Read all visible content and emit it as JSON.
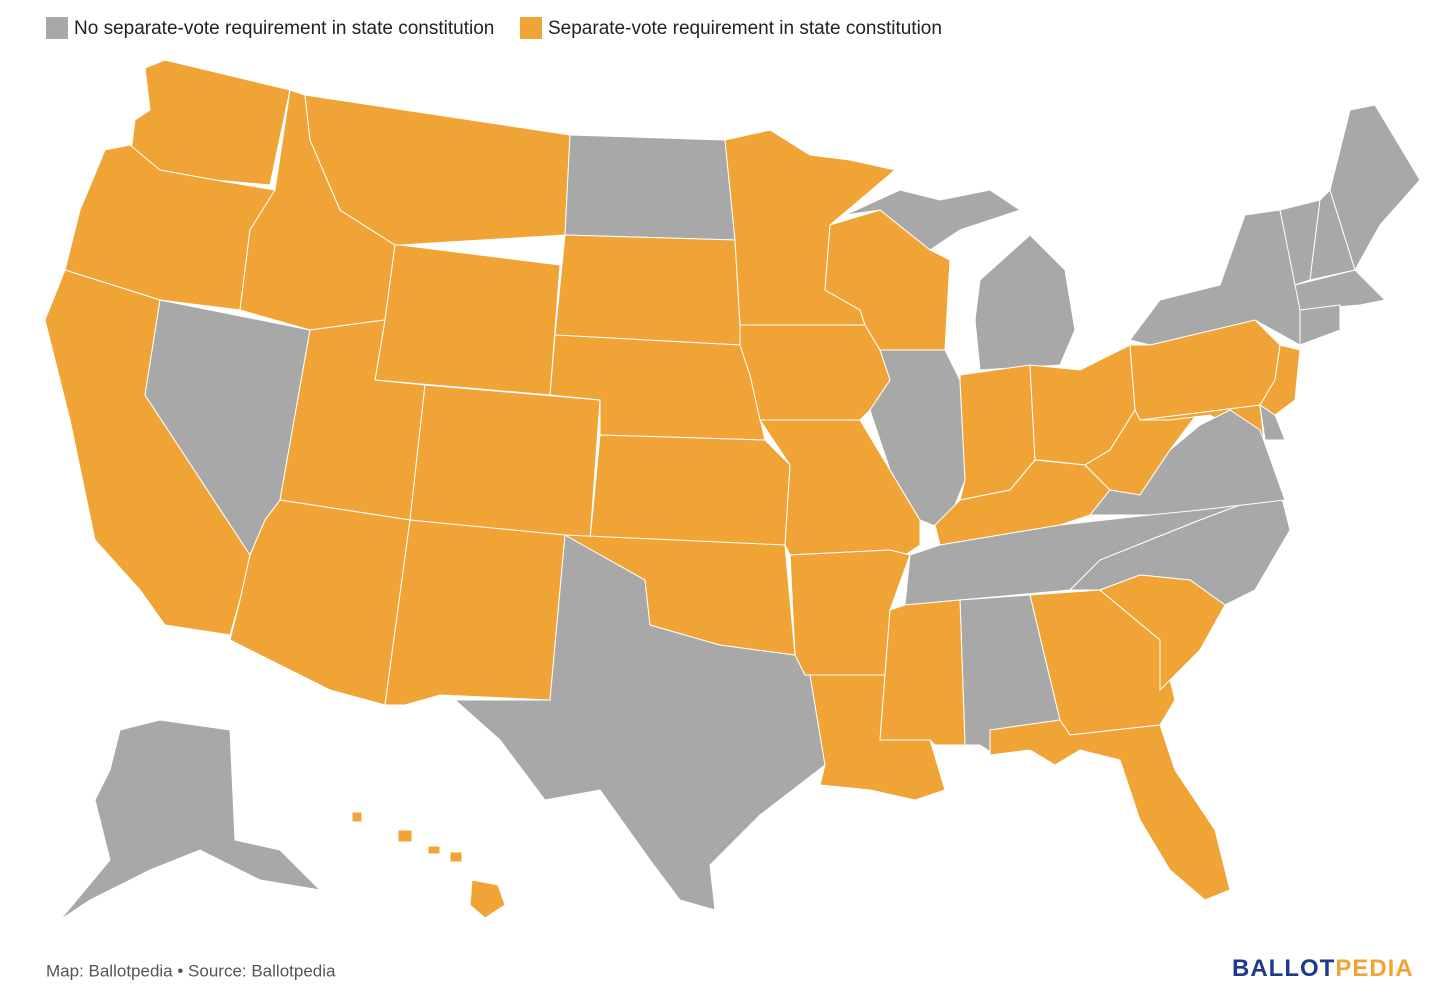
{
  "legend": [
    {
      "label": "No separate-vote requirement in state constitution",
      "color": "#a8a8a8"
    },
    {
      "label": "Separate-vote requirement in state constitution",
      "color": "#f0a435"
    }
  ],
  "map": {
    "region_groups": [
      1,
      1,
      1,
      0,
      1,
      1,
      1,
      1,
      1,
      1,
      0,
      1,
      1,
      1,
      1,
      0,
      1,
      1,
      1,
      1,
      1,
      1,
      0,
      0,
      1,
      1,
      1,
      1,
      0,
      0,
      1,
      1,
      0,
      1,
      1,
      1,
      1,
      0,
      1,
      0,
      1,
      0,
      0,
      0,
      0,
      0,
      0,
      0,
      1
    ]
  },
  "footer": {
    "source": "Map: Ballotpedia • Source: Ballotpedia",
    "logo_part1": "BALLOT",
    "logo_part2": "PEDIA"
  }
}
